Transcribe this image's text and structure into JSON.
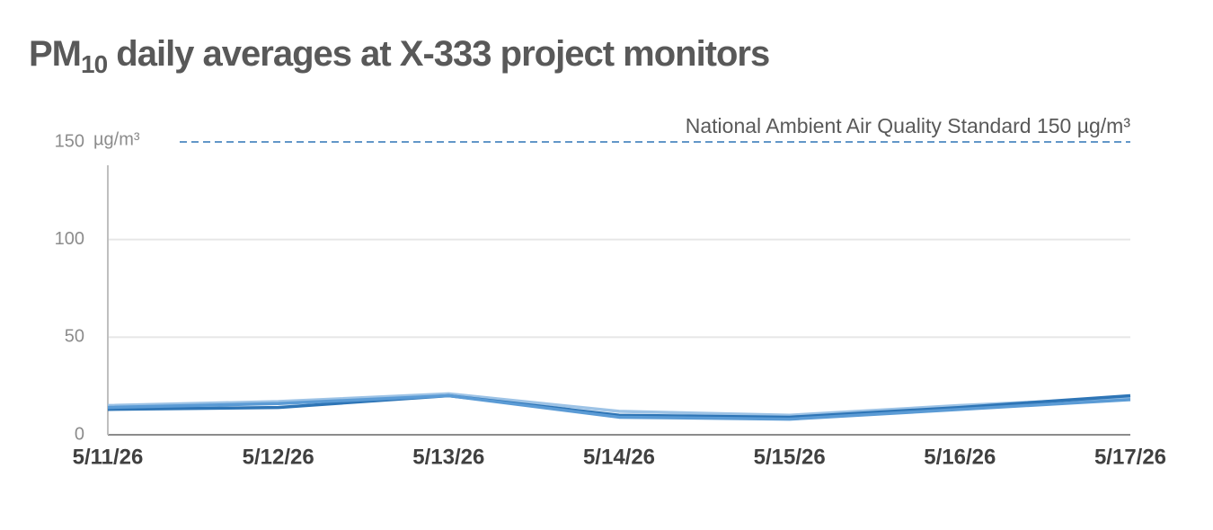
{
  "chart_data": {
    "type": "line",
    "title": {
      "main": "PM",
      "subscript": "10",
      "rest": " daily averages at X-333 project monitors"
    },
    "y_unit": "µg/m³",
    "categories": [
      "5/11/26",
      "5/12/26",
      "5/13/26",
      "5/14/26",
      "5/15/26",
      "5/16/26",
      "5/17/26"
    ],
    "series": [
      {
        "color": "#9dc3e6",
        "values": [
          15,
          17,
          21,
          12,
          10,
          15,
          19
        ]
      },
      {
        "color": "#2e75b6",
        "values": [
          13,
          14,
          20,
          10,
          9,
          14,
          20
        ]
      },
      {
        "color": "#5b9bd5",
        "values": [
          14,
          16,
          20,
          9,
          8,
          13,
          18
        ]
      }
    ],
    "ylim": [
      0,
      150
    ],
    "yticks": [
      0,
      50,
      100,
      150
    ],
    "grid": true,
    "reference_line": {
      "value": 150,
      "label": "National Ambient Air Quality Standard 150 µg/m³",
      "color": "#2e75b6"
    }
  }
}
